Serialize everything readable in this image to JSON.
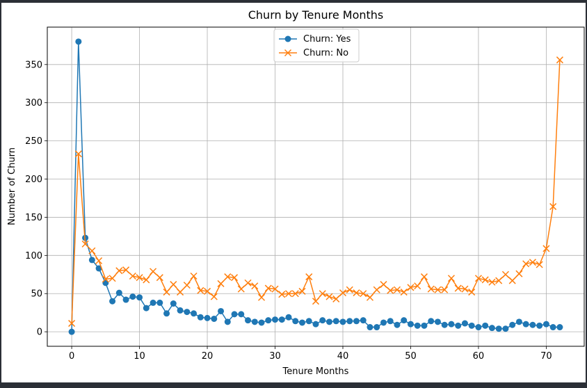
{
  "chart_data": {
    "type": "line",
    "title": "Churn by Tenure Months",
    "xlabel": "Tenure Months",
    "ylabel": "Number of Churn",
    "xlim": [
      -3.6,
      75.6
    ],
    "ylim": [
      -19,
      399
    ],
    "xticks": [
      0,
      10,
      20,
      30,
      40,
      50,
      60,
      70
    ],
    "yticks": [
      0,
      50,
      100,
      150,
      200,
      250,
      300,
      350
    ],
    "grid": true,
    "legend_position": "top-center",
    "x": [
      0,
      1,
      2,
      3,
      4,
      5,
      6,
      7,
      8,
      9,
      10,
      11,
      12,
      13,
      14,
      15,
      16,
      17,
      18,
      19,
      20,
      21,
      22,
      23,
      24,
      25,
      26,
      27,
      28,
      29,
      30,
      31,
      32,
      33,
      34,
      35,
      36,
      37,
      38,
      39,
      40,
      41,
      42,
      43,
      44,
      45,
      46,
      47,
      48,
      49,
      50,
      51,
      52,
      53,
      54,
      55,
      56,
      57,
      58,
      59,
      60,
      61,
      62,
      63,
      64,
      65,
      66,
      67,
      68,
      69,
      70,
      71,
      72
    ],
    "series": [
      {
        "name": "Churn: Yes",
        "color": "#1f77b4",
        "marker": "circle",
        "values": [
          0,
          380,
          123,
          94,
          83,
          64,
          40,
          51,
          42,
          46,
          45,
          31,
          38,
          38,
          24,
          37,
          28,
          26,
          24,
          19,
          18,
          17,
          27,
          13,
          23,
          23,
          15,
          13,
          12,
          15,
          16,
          16,
          19,
          14,
          12,
          14,
          10,
          15,
          13,
          14,
          13,
          14,
          14,
          15,
          6,
          6,
          12,
          14,
          9,
          15,
          10,
          8,
          8,
          14,
          13,
          9,
          10,
          8,
          11,
          8,
          6,
          8,
          5,
          4,
          4,
          9,
          13,
          10,
          9,
          8,
          10,
          6,
          6
        ]
      },
      {
        "name": "Churn: No",
        "color": "#ff7f0e",
        "marker": "x",
        "values": [
          11,
          233,
          115,
          106,
          93,
          69,
          70,
          80,
          81,
          73,
          71,
          68,
          79,
          71,
          52,
          62,
          52,
          61,
          73,
          54,
          53,
          46,
          63,
          72,
          71,
          56,
          64,
          60,
          45,
          57,
          56,
          49,
          50,
          50,
          53,
          72,
          40,
          50,
          46,
          43,
          51,
          55,
          51,
          50,
          45,
          55,
          62,
          54,
          55,
          52,
          58,
          60,
          72,
          56,
          55,
          55,
          70,
          57,
          56,
          52,
          70,
          68,
          65,
          67,
          75,
          67,
          76,
          89,
          91,
          88,
          109,
          164,
          356
        ]
      }
    ]
  }
}
